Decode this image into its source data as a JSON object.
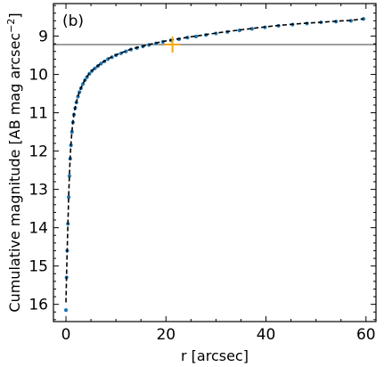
{
  "chart_data": {
    "type": "line",
    "panel_label": "(b)",
    "xlabel": "r [arcsec]",
    "ylabel_main": "Cumulative magnitude [AB mag arcsec",
    "ylabel_sup": "−2",
    "ylabel_close": "]",
    "xlim": [
      -2.5,
      62.0
    ],
    "ylim": [
      16.45,
      8.15
    ],
    "y_inverted": true,
    "x_ticks": [
      0,
      20,
      40,
      60
    ],
    "x_tick_labels": [
      "0",
      "20",
      "40",
      "60"
    ],
    "y_ticks": [
      9,
      10,
      11,
      12,
      13,
      14,
      15,
      16
    ],
    "y_tick_labels": [
      "9",
      "10",
      "11",
      "12",
      "13",
      "14",
      "15",
      "16"
    ],
    "grid": false,
    "series": [
      {
        "style": "scatter",
        "color": "#1f77b4",
        "x": [
          0.0,
          0.12,
          0.25,
          0.4,
          0.55,
          0.7,
          0.85,
          1.0,
          1.2,
          1.4,
          1.6,
          1.85,
          2.1,
          2.4,
          2.7,
          3.0,
          3.4,
          3.8,
          4.2,
          4.7,
          5.2,
          5.8,
          6.4,
          7.0,
          7.7,
          8.4,
          9.2,
          10.0,
          11.0,
          12.0,
          13.0,
          14.2,
          15.4,
          16.6,
          18.0,
          19.4,
          21.0,
          22.6,
          24.3,
          26.0,
          28.0,
          30.0,
          32.3,
          34.7,
          37.2,
          39.8,
          42.5,
          45.3,
          48.2,
          51.0,
          54.0,
          57.0,
          59.5
        ],
        "y": [
          16.15,
          15.3,
          14.6,
          13.9,
          13.2,
          12.65,
          12.2,
          11.85,
          11.5,
          11.25,
          11.05,
          10.88,
          10.73,
          10.58,
          10.46,
          10.36,
          10.25,
          10.15,
          10.07,
          9.98,
          9.91,
          9.84,
          9.78,
          9.72,
          9.66,
          9.6,
          9.55,
          9.5,
          9.45,
          9.4,
          9.35,
          9.31,
          9.27,
          9.23,
          9.19,
          9.15,
          9.11,
          9.08,
          9.04,
          9.01,
          8.97,
          8.93,
          8.89,
          8.85,
          8.81,
          8.77,
          8.73,
          8.7,
          8.67,
          8.64,
          8.62,
          8.6,
          8.55
        ]
      },
      {
        "style": "dashed-line",
        "color": "#000000",
        "x": [
          0.0,
          0.12,
          0.25,
          0.4,
          0.55,
          0.7,
          0.85,
          1.0,
          1.2,
          1.4,
          1.6,
          1.85,
          2.1,
          2.4,
          2.7,
          3.0,
          3.4,
          3.8,
          4.2,
          4.7,
          5.2,
          5.8,
          6.4,
          7.0,
          7.7,
          8.4,
          9.2,
          10.0,
          11.0,
          12.0,
          13.0,
          14.2,
          15.4,
          16.6,
          18.0,
          19.4,
          21.0,
          22.6,
          24.3,
          26.0,
          28.0,
          30.0,
          32.3,
          34.7,
          37.2,
          39.8,
          42.5,
          45.3,
          48.2,
          51.0,
          54.0,
          57.0,
          59.5
        ],
        "y": [
          15.95,
          15.25,
          14.55,
          13.85,
          13.15,
          12.6,
          12.15,
          11.82,
          11.48,
          11.23,
          11.03,
          10.86,
          10.71,
          10.57,
          10.45,
          10.35,
          10.24,
          10.14,
          10.06,
          9.97,
          9.9,
          9.83,
          9.77,
          9.71,
          9.65,
          9.59,
          9.54,
          9.49,
          9.44,
          9.39,
          9.34,
          9.3,
          9.26,
          9.22,
          9.18,
          9.14,
          9.1,
          9.07,
          9.03,
          9.0,
          8.96,
          8.92,
          8.88,
          8.84,
          8.8,
          8.76,
          8.72,
          8.69,
          8.66,
          8.64,
          8.61,
          8.59,
          8.55
        ]
      }
    ],
    "hline": {
      "y": 9.22,
      "color": "#555555"
    },
    "marker": {
      "x": 21.3,
      "y": 9.22,
      "symbol": "plus",
      "color": "#ffa500"
    }
  }
}
